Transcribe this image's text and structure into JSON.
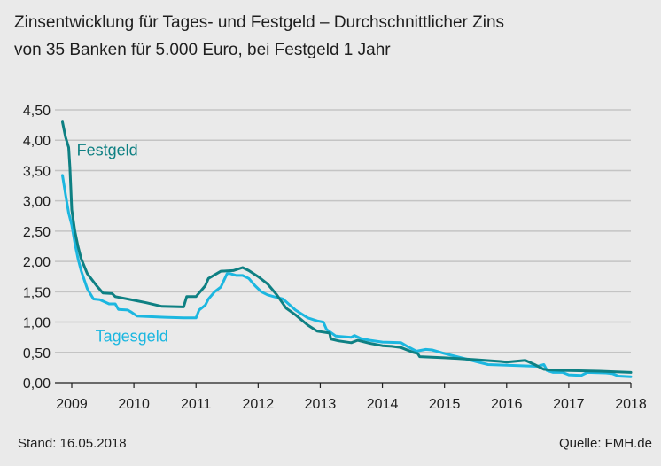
{
  "title": {
    "line1": "Zinsentwicklung für Tages- und Festgeld – Durchschnittlicher Zins",
    "line2": "von 35 Banken für 5.000 Euro, bei Festgeld 1 Jahr"
  },
  "footer": {
    "date": "Stand: 16.05.2018",
    "source": "Quelle: FMH.de"
  },
  "colors": {
    "festgeld": "#0e8083",
    "tagesgeld": "#1cb7e0",
    "grid": "#c4c4c4",
    "background": "#eaeaea"
  },
  "chart_data": {
    "type": "line",
    "xlim": [
      2008.8,
      2018.0
    ],
    "ylim": [
      0,
      4.5
    ],
    "x_ticks": [
      {
        "value": 2009,
        "label": "2009"
      },
      {
        "value": 2010,
        "label": "2010"
      },
      {
        "value": 2011,
        "label": "2011"
      },
      {
        "value": 2012,
        "label": "2012"
      },
      {
        "value": 2013,
        "label": "2013"
      },
      {
        "value": 2014,
        "label": "2014"
      },
      {
        "value": 2015,
        "label": "2015"
      },
      {
        "value": 2016,
        "label": "2016"
      },
      {
        "value": 2017,
        "label": "2017"
      },
      {
        "value": 2018,
        "label": "2018"
      }
    ],
    "y_ticks": [
      {
        "value": 0,
        "label": "0,00"
      },
      {
        "value": 0.5,
        "label": "0,50"
      },
      {
        "value": 1.0,
        "label": "1,00"
      },
      {
        "value": 1.5,
        "label": "1,50"
      },
      {
        "value": 2.0,
        "label": "2,00"
      },
      {
        "value": 2.5,
        "label": "2,50"
      },
      {
        "value": 3.0,
        "label": "3,00"
      },
      {
        "value": 3.5,
        "label": "3,50"
      },
      {
        "value": 4.0,
        "label": "4,00"
      },
      {
        "value": 4.5,
        "label": "4,50"
      }
    ],
    "grid": true,
    "series": [
      {
        "name": "Festgeld",
        "x": [
          2008.85,
          2008.9,
          2008.95,
          2008.97,
          2009.0,
          2009.05,
          2009.1,
          2009.15,
          2009.25,
          2009.4,
          2009.5,
          2009.65,
          2009.7,
          2010.0,
          2010.2,
          2010.45,
          2010.8,
          2010.85,
          2011.0,
          2011.15,
          2011.2,
          2011.4,
          2011.6,
          2011.75,
          2011.85,
          2012.0,
          2012.15,
          2012.3,
          2012.45,
          2012.6,
          2012.8,
          2012.95,
          2013.15,
          2013.17,
          2013.3,
          2013.5,
          2013.6,
          2013.8,
          2014.0,
          2014.15,
          2014.3,
          2014.5,
          2014.57,
          2014.6,
          2014.8,
          2015.0,
          2015.2,
          2015.5,
          2015.9,
          2016.0,
          2016.3,
          2016.45,
          2016.6,
          2016.7,
          2017.0,
          2017.5,
          2018.0
        ],
        "values": [
          4.3,
          4.05,
          3.88,
          3.55,
          2.85,
          2.5,
          2.25,
          2.05,
          1.8,
          1.6,
          1.48,
          1.47,
          1.42,
          1.36,
          1.32,
          1.26,
          1.25,
          1.42,
          1.42,
          1.6,
          1.72,
          1.84,
          1.85,
          1.9,
          1.85,
          1.75,
          1.63,
          1.45,
          1.23,
          1.12,
          0.95,
          0.85,
          0.82,
          0.72,
          0.69,
          0.66,
          0.7,
          0.65,
          0.61,
          0.6,
          0.58,
          0.5,
          0.48,
          0.43,
          0.42,
          0.41,
          0.4,
          0.38,
          0.35,
          0.34,
          0.37,
          0.3,
          0.22,
          0.21,
          0.2,
          0.19,
          0.17
        ]
      },
      {
        "name": "Tagesgeld",
        "x": [
          2008.85,
          2008.9,
          2008.95,
          2009.0,
          2009.05,
          2009.1,
          2009.15,
          2009.25,
          2009.35,
          2009.45,
          2009.6,
          2009.7,
          2009.75,
          2009.9,
          2009.95,
          2010.05,
          2010.25,
          2010.5,
          2010.8,
          2011.0,
          2011.05,
          2011.15,
          2011.2,
          2011.3,
          2011.4,
          2011.5,
          2011.55,
          2011.65,
          2011.75,
          2011.85,
          2011.95,
          2012.05,
          2012.15,
          2012.25,
          2012.4,
          2012.6,
          2012.8,
          2012.95,
          2013.05,
          2013.1,
          2013.25,
          2013.5,
          2013.55,
          2013.65,
          2013.8,
          2014.0,
          2014.3,
          2014.4,
          2014.55,
          2014.7,
          2014.8,
          2015.0,
          2015.2,
          2015.5,
          2015.7,
          2016.0,
          2016.5,
          2016.6,
          2016.65,
          2016.75,
          2016.9,
          2017.0,
          2017.2,
          2017.3,
          2017.6,
          2017.7,
          2017.8,
          2018.0
        ],
        "values": [
          3.42,
          3.1,
          2.8,
          2.6,
          2.3,
          2.05,
          1.85,
          1.55,
          1.38,
          1.37,
          1.3,
          1.3,
          1.21,
          1.2,
          1.17,
          1.1,
          1.09,
          1.08,
          1.07,
          1.07,
          1.2,
          1.28,
          1.38,
          1.5,
          1.58,
          1.8,
          1.8,
          1.77,
          1.77,
          1.72,
          1.6,
          1.5,
          1.45,
          1.42,
          1.38,
          1.2,
          1.07,
          1.02,
          1.0,
          0.88,
          0.77,
          0.75,
          0.78,
          0.73,
          0.7,
          0.67,
          0.66,
          0.6,
          0.52,
          0.55,
          0.54,
          0.48,
          0.43,
          0.35,
          0.3,
          0.29,
          0.27,
          0.3,
          0.2,
          0.17,
          0.17,
          0.13,
          0.12,
          0.17,
          0.16,
          0.15,
          0.11,
          0.1
        ]
      }
    ],
    "annotations": [
      {
        "text": "Festgeld",
        "series": 0
      },
      {
        "text": "Tagesgeld",
        "series": 1
      }
    ]
  }
}
